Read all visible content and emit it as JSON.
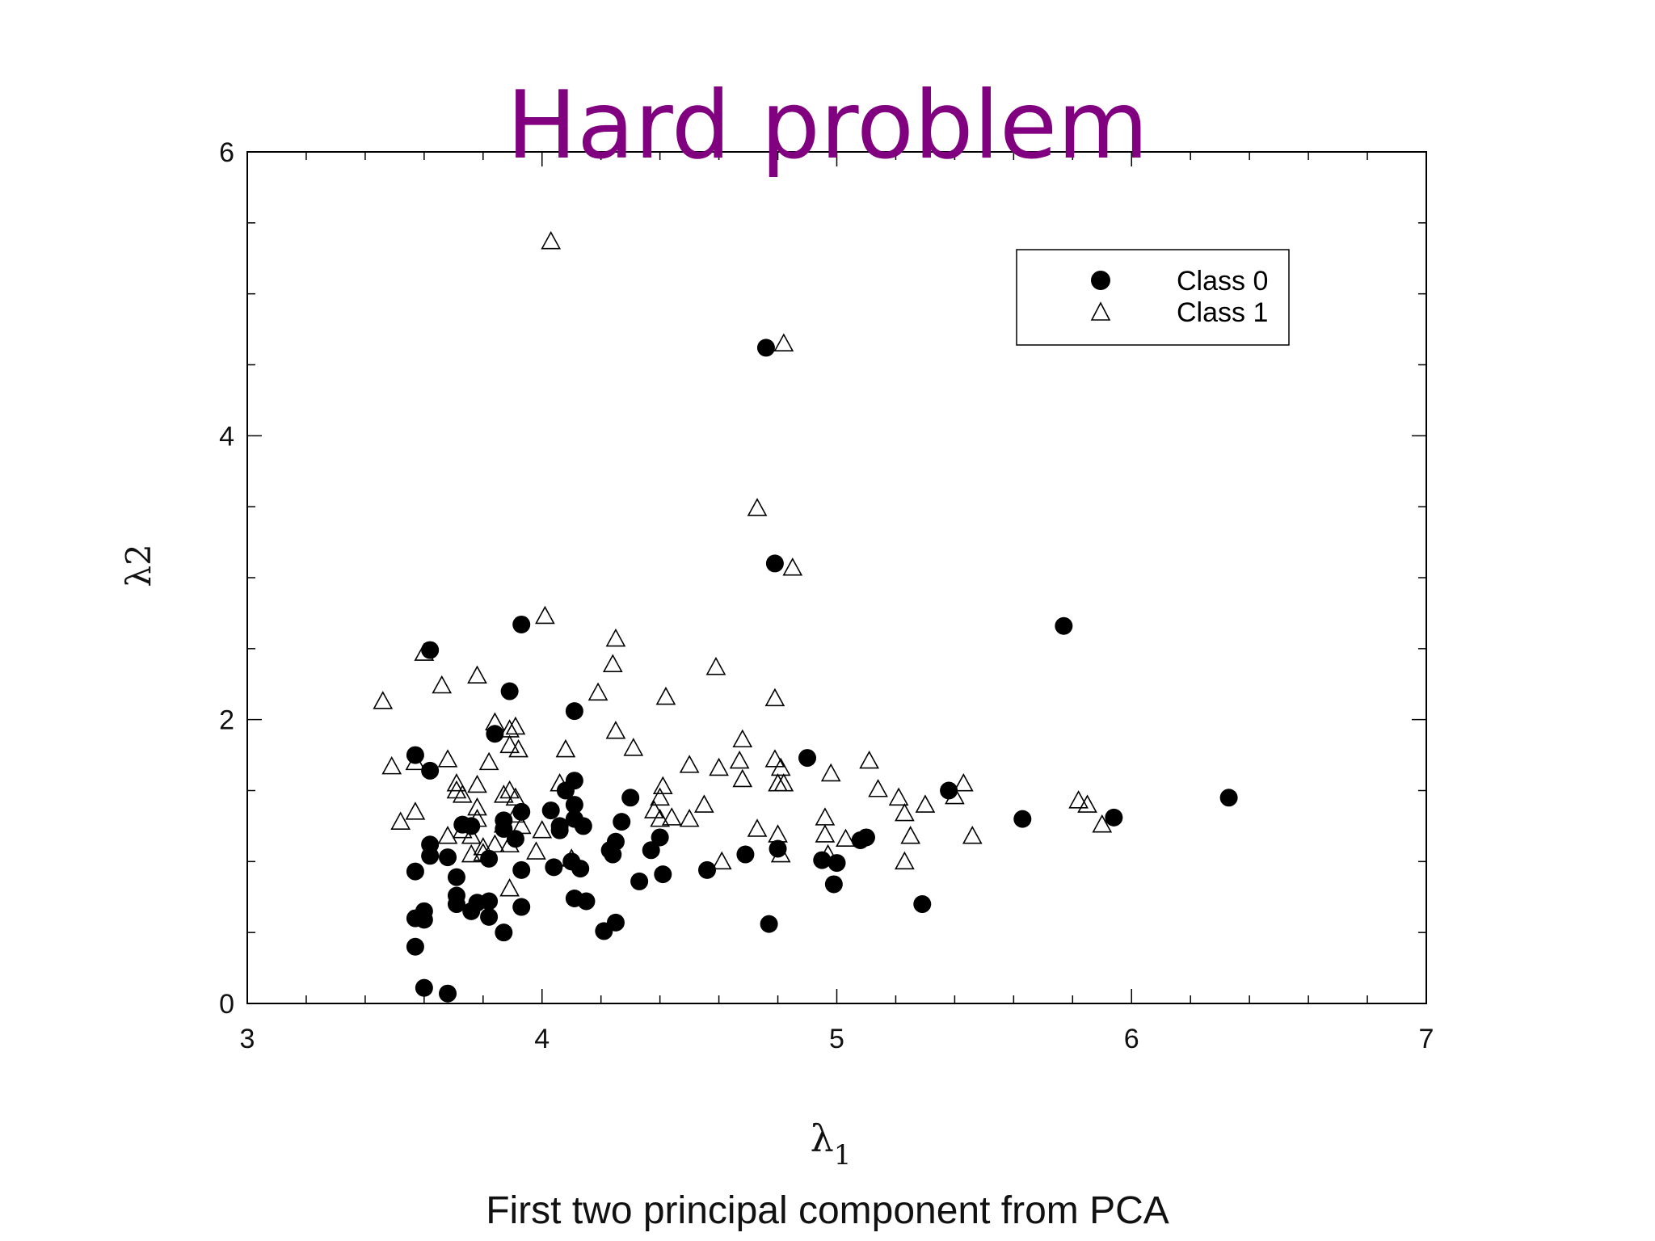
{
  "slide": {
    "title": "Hard problem",
    "title_color": "#800080",
    "caption": "First two principal component from PCA"
  },
  "chart_data": {
    "type": "scatter",
    "title": "Hard problem",
    "xlabel": "λ1",
    "ylabel": "λ2",
    "xlim": [
      3,
      7
    ],
    "ylim": [
      0,
      6
    ],
    "x_ticks": [
      "3",
      "4",
      "5",
      "6",
      "7"
    ],
    "y_ticks": [
      "0",
      "2",
      "4",
      "6"
    ],
    "grid": false,
    "legend_position": "top-right",
    "series": [
      {
        "name": "Class 0",
        "marker": "filled-circle",
        "color": "#000000",
        "points": [
          [
            3.57,
            1.75
          ],
          [
            3.62,
            1.64
          ],
          [
            3.62,
            1.12
          ],
          [
            3.62,
            1.04
          ],
          [
            3.57,
            0.93
          ],
          [
            3.6,
            0.65
          ],
          [
            3.57,
            0.6
          ],
          [
            3.6,
            0.59
          ],
          [
            3.57,
            0.4
          ],
          [
            3.6,
            0.11
          ],
          [
            3.68,
            0.07
          ],
          [
            3.62,
            2.49
          ],
          [
            3.68,
            1.03
          ],
          [
            3.71,
            0.89
          ],
          [
            3.71,
            0.76
          ],
          [
            3.71,
            0.7
          ],
          [
            3.73,
            1.26
          ],
          [
            3.76,
            1.25
          ],
          [
            3.76,
            0.65
          ],
          [
            3.78,
            0.71
          ],
          [
            3.82,
            0.72
          ],
          [
            3.82,
            0.61
          ],
          [
            3.82,
            1.02
          ],
          [
            3.84,
            1.9
          ],
          [
            3.87,
            1.29
          ],
          [
            3.87,
            1.23
          ],
          [
            3.87,
            0.5
          ],
          [
            3.89,
            2.2
          ],
          [
            3.91,
            1.16
          ],
          [
            3.93,
            1.35
          ],
          [
            3.93,
            0.94
          ],
          [
            3.93,
            0.68
          ],
          [
            3.93,
            2.67
          ],
          [
            4.03,
            1.36
          ],
          [
            4.04,
            0.96
          ],
          [
            4.06,
            1.25
          ],
          [
            4.06,
            1.22
          ],
          [
            4.08,
            1.5
          ],
          [
            4.1,
            1.0
          ],
          [
            4.11,
            2.06
          ],
          [
            4.11,
            1.57
          ],
          [
            4.11,
            1.4
          ],
          [
            4.11,
            1.3
          ],
          [
            4.11,
            0.74
          ],
          [
            4.13,
            0.95
          ],
          [
            4.14,
            1.25
          ],
          [
            4.15,
            0.72
          ],
          [
            4.21,
            0.51
          ],
          [
            4.23,
            1.08
          ],
          [
            4.24,
            1.05
          ],
          [
            4.25,
            1.14
          ],
          [
            4.25,
            0.57
          ],
          [
            4.27,
            1.28
          ],
          [
            4.3,
            1.45
          ],
          [
            4.33,
            0.86
          ],
          [
            4.37,
            1.08
          ],
          [
            4.4,
            1.17
          ],
          [
            4.41,
            0.91
          ],
          [
            4.56,
            0.94
          ],
          [
            4.69,
            1.05
          ],
          [
            4.76,
            4.62
          ],
          [
            4.77,
            0.56
          ],
          [
            4.79,
            3.1
          ],
          [
            4.8,
            1.09
          ],
          [
            4.9,
            1.73
          ],
          [
            4.95,
            1.01
          ],
          [
            5.0,
            0.99
          ],
          [
            4.99,
            0.84
          ],
          [
            5.08,
            1.15
          ],
          [
            5.1,
            1.17
          ],
          [
            5.29,
            0.7
          ],
          [
            5.38,
            1.5
          ],
          [
            5.63,
            1.3
          ],
          [
            5.77,
            2.66
          ],
          [
            5.94,
            1.31
          ],
          [
            6.33,
            1.45
          ]
        ]
      },
      {
        "name": "Class 1",
        "marker": "open-triangle",
        "color": "#000000",
        "points": [
          [
            4.03,
            5.37
          ],
          [
            4.82,
            4.65
          ],
          [
            4.73,
            3.49
          ],
          [
            4.85,
            3.07
          ],
          [
            4.01,
            2.73
          ],
          [
            4.25,
            2.57
          ],
          [
            3.6,
            2.47
          ],
          [
            4.59,
            2.37
          ],
          [
            4.24,
            2.39
          ],
          [
            3.78,
            2.31
          ],
          [
            3.66,
            2.24
          ],
          [
            4.19,
            2.19
          ],
          [
            3.46,
            2.13
          ],
          [
            4.42,
            2.16
          ],
          [
            4.79,
            2.15
          ],
          [
            3.84,
            1.98
          ],
          [
            3.89,
            1.93
          ],
          [
            3.91,
            1.95
          ],
          [
            4.25,
            1.92
          ],
          [
            4.68,
            1.86
          ],
          [
            3.89,
            1.82
          ],
          [
            3.92,
            1.79
          ],
          [
            4.08,
            1.79
          ],
          [
            4.31,
            1.8
          ],
          [
            3.49,
            1.67
          ],
          [
            3.57,
            1.7
          ],
          [
            3.68,
            1.72
          ],
          [
            3.82,
            1.7
          ],
          [
            4.5,
            1.68
          ],
          [
            4.6,
            1.66
          ],
          [
            4.67,
            1.71
          ],
          [
            4.79,
            1.72
          ],
          [
            4.81,
            1.66
          ],
          [
            5.11,
            1.71
          ],
          [
            4.98,
            1.62
          ],
          [
            3.71,
            1.55
          ],
          [
            3.71,
            1.5
          ],
          [
            3.73,
            1.47
          ],
          [
            3.78,
            1.54
          ],
          [
            3.87,
            1.47
          ],
          [
            3.89,
            1.5
          ],
          [
            3.91,
            1.45
          ],
          [
            4.06,
            1.55
          ],
          [
            4.41,
            1.53
          ],
          [
            4.68,
            1.58
          ],
          [
            4.8,
            1.55
          ],
          [
            4.82,
            1.55
          ],
          [
            5.14,
            1.51
          ],
          [
            5.21,
            1.45
          ],
          [
            5.43,
            1.55
          ],
          [
            5.4,
            1.46
          ],
          [
            3.52,
            1.28
          ],
          [
            3.57,
            1.35
          ],
          [
            3.68,
            1.18
          ],
          [
            3.73,
            1.22
          ],
          [
            3.76,
            1.18
          ],
          [
            3.78,
            1.3
          ],
          [
            3.78,
            1.38
          ],
          [
            3.8,
            1.1
          ],
          [
            3.84,
            1.12
          ],
          [
            3.87,
            1.26
          ],
          [
            3.91,
            1.33
          ],
          [
            3.93,
            1.25
          ],
          [
            4.0,
            1.22
          ],
          [
            4.4,
            1.45
          ],
          [
            4.38,
            1.36
          ],
          [
            4.4,
            1.3
          ],
          [
            4.44,
            1.31
          ],
          [
            4.5,
            1.3
          ],
          [
            4.55,
            1.4
          ],
          [
            4.73,
            1.23
          ],
          [
            4.8,
            1.19
          ],
          [
            4.96,
            1.31
          ],
          [
            4.96,
            1.19
          ],
          [
            5.03,
            1.16
          ],
          [
            5.23,
            1.34
          ],
          [
            5.25,
            1.18
          ],
          [
            5.3,
            1.4
          ],
          [
            5.46,
            1.18
          ],
          [
            5.82,
            1.43
          ],
          [
            5.85,
            1.4
          ],
          [
            5.9,
            1.26
          ],
          [
            3.76,
            1.05
          ],
          [
            3.8,
            1.06
          ],
          [
            3.89,
            1.12
          ],
          [
            3.98,
            1.07
          ],
          [
            4.1,
            1.02
          ],
          [
            4.61,
            1.0
          ],
          [
            4.81,
            1.05
          ],
          [
            4.97,
            1.05
          ],
          [
            5.23,
            1.0
          ],
          [
            3.89,
            0.81
          ]
        ]
      }
    ]
  }
}
